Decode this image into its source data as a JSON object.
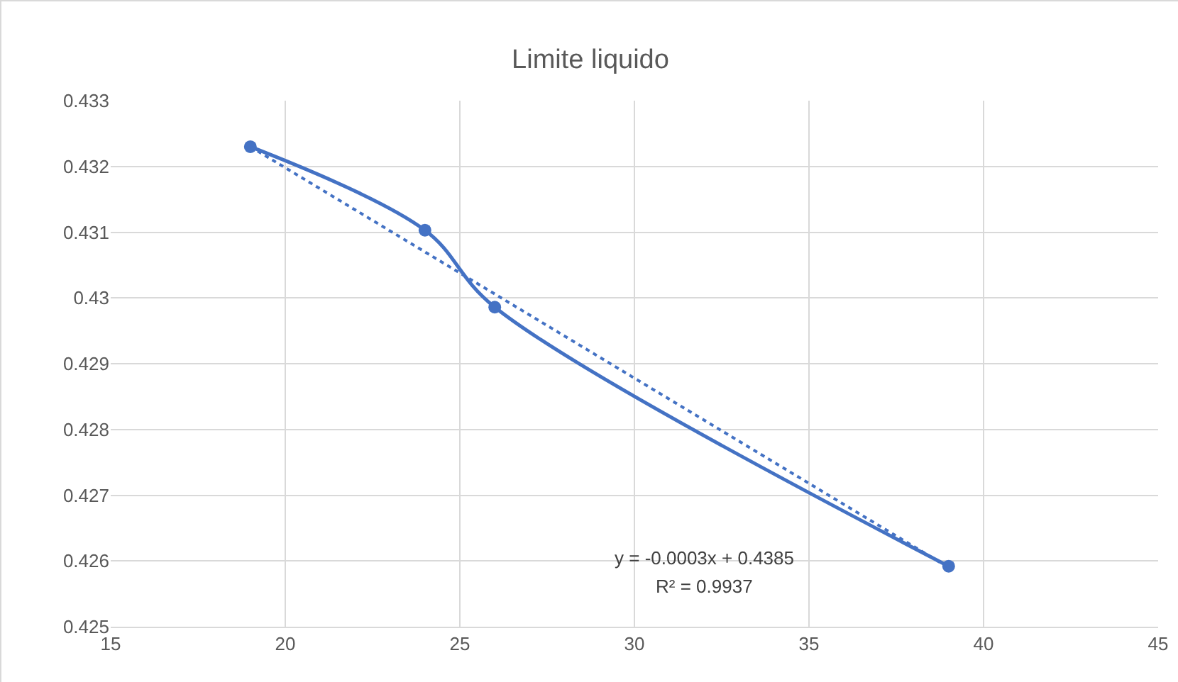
{
  "chart_data": {
    "type": "line",
    "title": "Limite liquido",
    "x": [
      19,
      24,
      26,
      39
    ],
    "series": [
      {
        "color": "#4472c4",
        "marker": "circle",
        "line_style": "solid",
        "values": [
          0.4323,
          0.43103,
          0.42986,
          0.42592
        ]
      },
      {
        "color": "#4472c4",
        "marker": "none",
        "line_style": "dotted",
        "x": [
          19,
          39
        ],
        "values": [
          0.4323,
          0.4259
        ]
      }
    ],
    "xlim": [
      15,
      45
    ],
    "xticks": [
      15,
      20,
      25,
      30,
      35,
      40,
      45
    ],
    "ylim": [
      0.425,
      0.433
    ],
    "yticks": [
      0.425,
      0.426,
      0.427,
      0.428,
      0.429,
      0.43,
      0.431,
      0.432,
      0.433
    ],
    "grid": true,
    "annotations": [
      "y = -0.0003x + 0.4385",
      "R² = 0.9937"
    ]
  }
}
